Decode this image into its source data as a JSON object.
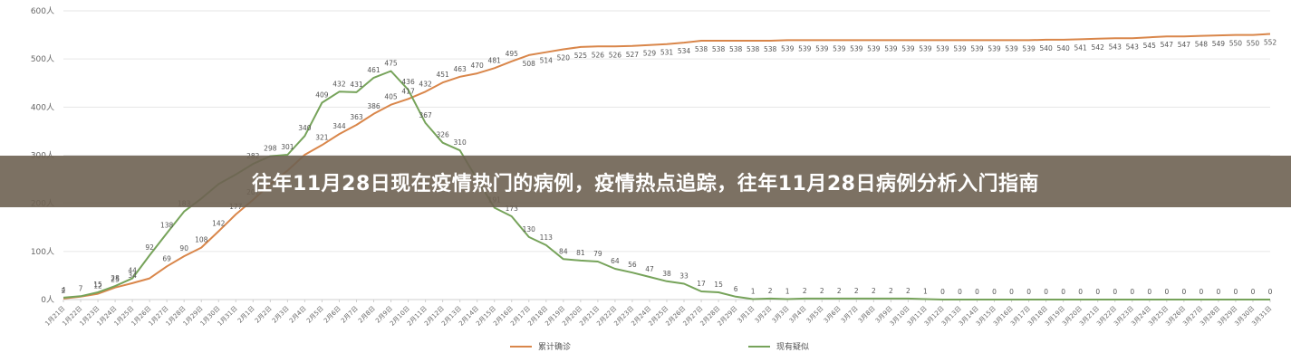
{
  "headline": "往年11月28日现在疫情热门的病例，疫情热点追踪，往年11月28日病例分析入门指南",
  "chart_data": {
    "type": "line",
    "ylim": [
      0,
      600
    ],
    "yticks": [
      0,
      100,
      200,
      300,
      400,
      500,
      600
    ],
    "ytick_labels": [
      "0人",
      "100人",
      "200人",
      "300人",
      "400人",
      "500人",
      "600人"
    ],
    "categories": [
      "1月21日",
      "1月22日",
      "1月23日",
      "1月24日",
      "1月25日",
      "1月26日",
      "1月27日",
      "1月28日",
      "1月29日",
      "1月30日",
      "1月31日",
      "2月1日",
      "2月2日",
      "2月3日",
      "2月4日",
      "2月5日",
      "2月6日",
      "2月7日",
      "2月8日",
      "2月9日",
      "2月10日",
      "2月11日",
      "2月12日",
      "2月13日",
      "2月14日",
      "2月15日",
      "2月16日",
      "2月17日",
      "2月18日",
      "2月19日",
      "2月20日",
      "2月21日",
      "2月22日",
      "2月23日",
      "2月24日",
      "2月25日",
      "2月26日",
      "2月27日",
      "2月28日",
      "2月29日",
      "3月1日",
      "3月2日",
      "3月3日",
      "3月4日",
      "3月5日",
      "3月6日",
      "3月7日",
      "3月8日",
      "3月9日",
      "3月10日",
      "3月11日",
      "3月12日",
      "3月13日",
      "3月14日",
      "3月15日",
      "3月16日",
      "3月17日",
      "3月18日",
      "3月19日",
      "3月20日",
      "3月21日",
      "3月22日",
      "3月23日",
      "3月24日",
      "3月25日",
      "3月26日",
      "3月27日",
      "3月28日",
      "3月29日",
      "3月30日",
      "3月31日"
    ],
    "series": [
      {
        "name": "累计确诊",
        "color": "#d9864a",
        "values": [
          2,
          6,
          12,
          25,
          34,
          44,
          69,
          90,
          108,
          142,
          177,
          207,
          240,
          268,
          301,
          321,
          344,
          363,
          386,
          405,
          417,
          432,
          451,
          463,
          470,
          481,
          495,
          508,
          514,
          520,
          525,
          526,
          526,
          527,
          529,
          531,
          534,
          538,
          538,
          538,
          538,
          538,
          539,
          539,
          539,
          539,
          539,
          539,
          539,
          539,
          539,
          539,
          539,
          539,
          539,
          539,
          539,
          540,
          540,
          541,
          542,
          543,
          543,
          545,
          547,
          547,
          548,
          549,
          550,
          550,
          552
        ],
        "labels_shown": [
          true,
          false,
          true,
          true,
          true,
          false,
          true,
          true,
          true,
          true,
          true,
          true,
          false,
          false,
          false,
          true,
          true,
          true,
          true,
          true,
          true,
          true,
          true,
          true,
          true,
          true,
          true,
          true,
          true,
          true,
          true,
          true,
          true,
          true,
          true,
          true,
          true,
          true,
          true,
          true,
          true,
          true,
          true,
          true,
          true,
          true,
          true,
          true,
          true,
          true,
          true,
          true,
          true,
          true,
          true,
          true,
          true,
          true,
          true,
          true,
          true,
          true,
          true,
          true,
          true,
          true,
          true,
          true,
          true,
          true,
          true
        ]
      },
      {
        "name": "现有疑似",
        "color": "#76a35a",
        "values": [
          4,
          7,
          15,
          28,
          44,
          92,
          138,
          183,
          210,
          240,
          260,
          282,
          298,
          301,
          340,
          409,
          432,
          431,
          461,
          475,
          436,
          367,
          326,
          310,
          250,
          191,
          173,
          130,
          113,
          84,
          81,
          79,
          64,
          56,
          47,
          38,
          33,
          17,
          15,
          6,
          1,
          2,
          1,
          2,
          2,
          2,
          2,
          2,
          2,
          2,
          1,
          0,
          0,
          0,
          0,
          0,
          0,
          0,
          0,
          0,
          0,
          0,
          0,
          0,
          0,
          0,
          0,
          0,
          0,
          0,
          0
        ],
        "labels_shown": [
          true,
          true,
          true,
          true,
          true,
          true,
          true,
          true,
          false,
          false,
          false,
          true,
          true,
          true,
          true,
          true,
          true,
          true,
          true,
          true,
          true,
          true,
          true,
          true,
          false,
          true,
          true,
          true,
          true,
          true,
          true,
          true,
          true,
          true,
          true,
          true,
          true,
          true,
          true,
          true,
          true,
          true,
          true,
          true,
          true,
          true,
          true,
          true,
          true,
          true,
          true,
          true,
          true,
          true,
          true,
          true,
          true,
          true,
          true,
          true,
          true,
          true,
          true,
          true,
          true,
          true,
          true,
          true,
          true,
          true,
          true
        ]
      }
    ],
    "grid": "horizontal",
    "legend_placement": "bottom-center"
  }
}
